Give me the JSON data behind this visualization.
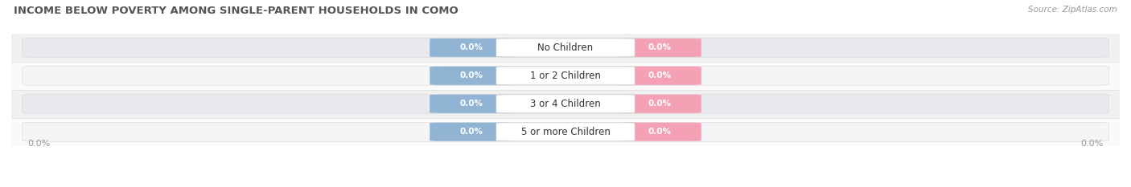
{
  "title": "INCOME BELOW POVERTY AMONG SINGLE-PARENT HOUSEHOLDS IN COMO",
  "source": "Source: ZipAtlas.com",
  "categories": [
    "No Children",
    "1 or 2 Children",
    "3 or 4 Children",
    "5 or more Children"
  ],
  "father_values": [
    0.0,
    0.0,
    0.0,
    0.0
  ],
  "mother_values": [
    0.0,
    0.0,
    0.0,
    0.0
  ],
  "father_color": "#92b4d4",
  "mother_color": "#f4a0b5",
  "row_bg_even": "#f0f0f0",
  "row_bg_odd": "#fafafa",
  "full_bar_color_even": "#e8e8ee",
  "full_bar_color_odd": "#f5f5f8",
  "title_color": "#555555",
  "source_color": "#999999",
  "label_color": "#999999",
  "title_fontsize": 9.5,
  "source_fontsize": 7.5,
  "axis_label_fontsize": 8,
  "bar_label_fontsize": 7.5,
  "cat_label_fontsize": 8.5,
  "legend_fontsize": 8.5
}
